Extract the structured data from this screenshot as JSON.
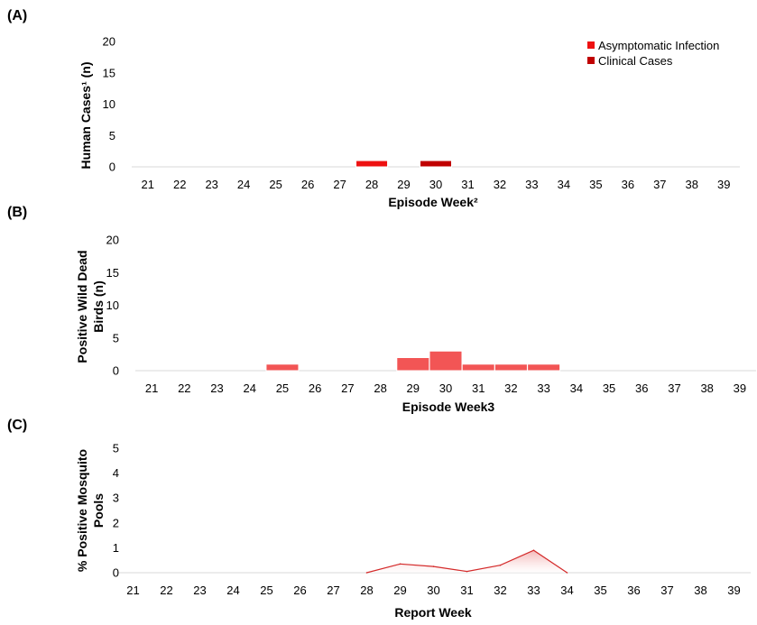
{
  "colors": {
    "asymptomatic": "#ee1111",
    "clinical": "#c00000",
    "birds": "#f25555",
    "mosquito_line": "#d42a2a",
    "mosquito_fill": "#f4b8b8",
    "axis": "#d9d9d9"
  },
  "chart_data": [
    {
      "panel": "(A)",
      "type": "bar",
      "categories": [
        "21",
        "22",
        "23",
        "24",
        "25",
        "26",
        "27",
        "28",
        "29",
        "30",
        "31",
        "32",
        "33",
        "34",
        "35",
        "36",
        "37",
        "38",
        "39"
      ],
      "y_ticks": [
        "0",
        "5",
        "10",
        "15",
        "20"
      ],
      "ylim": [
        0,
        20
      ],
      "xlabel": "Episode Week²",
      "ylabel": "Human Cases¹ (n)",
      "legend_position": "top-right",
      "series": [
        {
          "name": "Asymptomatic Infection",
          "values": [
            0,
            0,
            0,
            0,
            0,
            0,
            0,
            1,
            0,
            0,
            0,
            0,
            0,
            0,
            0,
            0,
            0,
            0,
            0
          ]
        },
        {
          "name": "Clinical Cases",
          "values": [
            0,
            0,
            0,
            0,
            0,
            0,
            0,
            0,
            0,
            1,
            0,
            0,
            0,
            0,
            0,
            0,
            0,
            0,
            0
          ]
        }
      ]
    },
    {
      "panel": "(B)",
      "type": "bar",
      "categories": [
        "21",
        "22",
        "23",
        "24",
        "25",
        "26",
        "27",
        "28",
        "29",
        "30",
        "31",
        "32",
        "33",
        "34",
        "35",
        "36",
        "37",
        "38",
        "39"
      ],
      "y_ticks": [
        "0",
        "5",
        "10",
        "15",
        "20"
      ],
      "ylim": [
        0,
        20
      ],
      "xlabel": "Episode Week3",
      "ylabel_lines": [
        "Positive Wild Dead",
        "Birds (n)"
      ],
      "series": [
        {
          "name": "Positive Wild Dead Birds",
          "values": [
            0,
            0,
            0,
            0,
            1,
            0,
            0,
            0,
            2,
            3,
            1,
            1,
            1,
            0,
            0,
            0,
            0,
            0,
            0
          ]
        }
      ]
    },
    {
      "panel": "(C)",
      "type": "area",
      "categories": [
        "21",
        "22",
        "23",
        "24",
        "25",
        "26",
        "27",
        "28",
        "29",
        "30",
        "31",
        "32",
        "33",
        "34",
        "35",
        "36",
        "37",
        "38",
        "39"
      ],
      "y_ticks": [
        "0",
        "1",
        "2",
        "3",
        "4",
        "5"
      ],
      "ylim": [
        0,
        5
      ],
      "xlabel": "Report Week",
      "ylabel_lines": [
        "% Positive Mosquito",
        "Pools"
      ],
      "series": [
        {
          "name": "% Positive Mosquito Pools",
          "x": [
            "28",
            "29",
            "30",
            "31",
            "32",
            "33",
            "34"
          ],
          "values": [
            0,
            0.35,
            0.25,
            0.05,
            0.3,
            0.9,
            0
          ]
        }
      ]
    }
  ]
}
